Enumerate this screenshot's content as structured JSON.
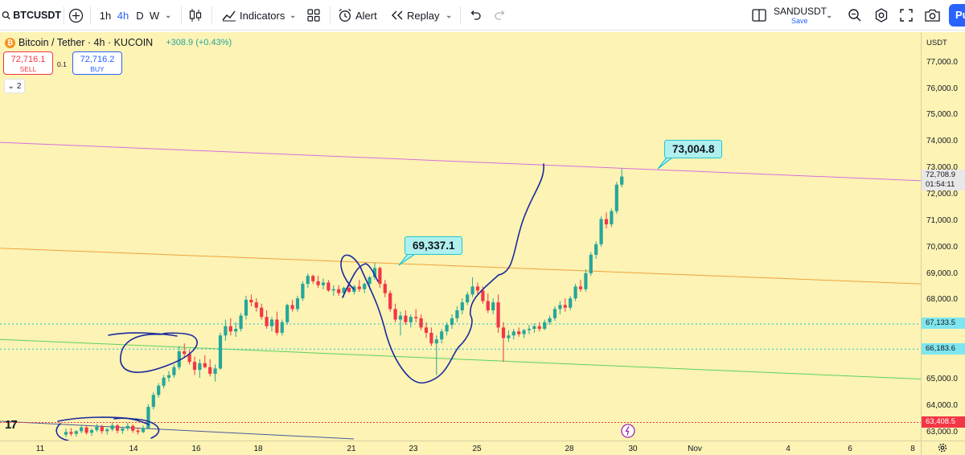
{
  "toolbar": {
    "symbol": "BTCUSDT",
    "timeframes": [
      "1h",
      "4h",
      "D",
      "W"
    ],
    "active_timeframe": "4h",
    "indicators_label": "Indicators",
    "alert_label": "Alert",
    "replay_label": "Replay",
    "layout_name": "SANDUSDT",
    "layout_status": "Save",
    "publish_label": "Pu"
  },
  "legend": {
    "title": "Bitcoin / Tether · 4h · KUCOIN",
    "change": "+308.9 (+0.43%)",
    "coin_glyph": "₿"
  },
  "trade": {
    "sell_price": "72,716.1",
    "sell_label": "SELL",
    "buy_price": "72,716.2",
    "buy_label": "BUY",
    "spread": "0.1",
    "collapse_count": "2"
  },
  "price_scale": {
    "currency": "USDT",
    "ticks": [
      "77,000.0",
      "76,000.0",
      "75,000.0",
      "74,000.0",
      "73,000.0",
      "72,000.0",
      "71,000.0",
      "70,000.0",
      "69,000.0",
      "68,000.0",
      "65,000.0",
      "64,000.0",
      "63,000.0"
    ],
    "current_price": "72,708.9",
    "countdown": "01:54:11",
    "badge_high": "67,133.5",
    "badge_low": "66,183.6",
    "badge_red": "63,408.5"
  },
  "time_axis": {
    "labels": [
      "11",
      "14",
      "16",
      "18",
      "21",
      "23",
      "25",
      "28",
      "30",
      "Nov",
      "4",
      "6",
      "8"
    ]
  },
  "annotations": {
    "callout_high": "73,004.8",
    "callout_mid": "69,337.1",
    "tv_logo": "17"
  },
  "colors": {
    "chart_bg": "#fcf3b4",
    "up": "#26a69a",
    "down": "#f23645",
    "accent": "#2962ff",
    "callout_fill": "#aff0ee",
    "pink_trend": "#d76ee0",
    "orange_trend": "#f0a23a",
    "green_trend": "#5bd15b",
    "drawing_ink": "#1b2a9e"
  },
  "chart_data": {
    "type": "candlestick",
    "symbol": "BTCUSDT",
    "interval": "4h",
    "exchange": "KUCOIN",
    "ylim": [
      62900,
      77600
    ],
    "x_ticks": [
      "11",
      "14",
      "16",
      "18",
      "21",
      "23",
      "25",
      "28",
      "30",
      "Nov",
      "4",
      "6",
      "8"
    ],
    "candles": [
      [
        62950,
        63180,
        62850,
        63050
      ],
      [
        63050,
        63200,
        62900,
        62980
      ],
      [
        62980,
        63120,
        62880,
        63080
      ],
      [
        63080,
        63300,
        63000,
        63220
      ],
      [
        63220,
        63300,
        62950,
        63020
      ],
      [
        63020,
        63180,
        62900,
        63120
      ],
      [
        63120,
        63350,
        63050,
        63250
      ],
      [
        63250,
        63320,
        62980,
        63080
      ],
      [
        63080,
        63200,
        62950,
        63150
      ],
      [
        63150,
        63400,
        63080,
        63300
      ],
      [
        63300,
        63350,
        63000,
        63100
      ],
      [
        63100,
        63250,
        62980,
        63180
      ],
      [
        63180,
        63400,
        63100,
        63280
      ],
      [
        63280,
        63330,
        63020,
        63100
      ],
      [
        63100,
        63200,
        62950,
        63050
      ],
      [
        63050,
        63300,
        63000,
        63200
      ],
      [
        63200,
        64100,
        63150,
        64000
      ],
      [
        64000,
        64550,
        63900,
        64450
      ],
      [
        64450,
        64900,
        64350,
        64800
      ],
      [
        64800,
        65200,
        64700,
        65100
      ],
      [
        65100,
        65350,
        64950,
        65200
      ],
      [
        65200,
        65600,
        65100,
        65500
      ],
      [
        65500,
        66300,
        65400,
        66100
      ],
      [
        66100,
        66400,
        65850,
        66000
      ],
      [
        66000,
        66150,
        65600,
        65700
      ],
      [
        65700,
        65900,
        65200,
        65400
      ],
      [
        65400,
        65800,
        65100,
        65650
      ],
      [
        65650,
        65950,
        65450,
        65500
      ],
      [
        65500,
        65800,
        65150,
        65250
      ],
      [
        65250,
        65600,
        64950,
        65450
      ],
      [
        65450,
        66800,
        65400,
        66700
      ],
      [
        66700,
        67300,
        66500,
        67050
      ],
      [
        67050,
        67350,
        66700,
        66850
      ],
      [
        66850,
        67200,
        66650,
        66950
      ],
      [
        66950,
        67550,
        66850,
        67450
      ],
      [
        67450,
        68200,
        67300,
        68050
      ],
      [
        68050,
        68250,
        67800,
        67950
      ],
      [
        67950,
        68100,
        67600,
        67750
      ],
      [
        67750,
        67900,
        67300,
        67400
      ],
      [
        67400,
        67650,
        66950,
        67050
      ],
      [
        67050,
        67400,
        66850,
        67300
      ],
      [
        67300,
        67600,
        66700,
        66800
      ],
      [
        66800,
        67300,
        66700,
        67200
      ],
      [
        67200,
        67900,
        67100,
        67850
      ],
      [
        67850,
        68050,
        67600,
        67700
      ],
      [
        67700,
        68200,
        67600,
        68100
      ],
      [
        68100,
        68750,
        68000,
        68650
      ],
      [
        68650,
        69050,
        68500,
        68950
      ],
      [
        68950,
        69000,
        68650,
        68750
      ],
      [
        68750,
        68950,
        68500,
        68600
      ],
      [
        68600,
        68850,
        68450,
        68700
      ],
      [
        68700,
        68800,
        68350,
        68400
      ],
      [
        68400,
        68600,
        68200,
        68450
      ],
      [
        68450,
        68600,
        68200,
        68300
      ],
      [
        68300,
        68550,
        68150,
        68500
      ],
      [
        68500,
        68700,
        68300,
        68350
      ],
      [
        68350,
        68600,
        68250,
        68550
      ],
      [
        68550,
        68800,
        68350,
        68450
      ],
      [
        68450,
        68700,
        68300,
        68650
      ],
      [
        68650,
        68950,
        68450,
        68900
      ],
      [
        68900,
        69450,
        68800,
        69250
      ],
      [
        69250,
        69300,
        68500,
        68650
      ],
      [
        68650,
        68800,
        68150,
        68300
      ],
      [
        68300,
        68400,
        67600,
        67700
      ],
      [
        67700,
        67900,
        67200,
        67300
      ],
      [
        67300,
        67600,
        66700,
        67450
      ],
      [
        67450,
        67650,
        67100,
        67200
      ],
      [
        67200,
        67500,
        67000,
        67400
      ],
      [
        67400,
        67700,
        67200,
        67350
      ],
      [
        67350,
        67500,
        66900,
        67000
      ],
      [
        67000,
        67200,
        66600,
        66800
      ],
      [
        66800,
        67000,
        66300,
        66400
      ],
      [
        66400,
        66700,
        65200,
        66550
      ],
      [
        66550,
        66950,
        66400,
        66850
      ],
      [
        66850,
        67200,
        66700,
        67100
      ],
      [
        67100,
        67500,
        66950,
        67350
      ],
      [
        67350,
        67800,
        67200,
        67650
      ],
      [
        67650,
        68100,
        67500,
        67950
      ],
      [
        67950,
        68350,
        67850,
        68250
      ],
      [
        68250,
        68900,
        68150,
        68550
      ],
      [
        68550,
        68700,
        68250,
        68400
      ],
      [
        68400,
        68550,
        67900,
        68000
      ],
      [
        68000,
        68300,
        67550,
        67650
      ],
      [
        67650,
        68100,
        67500,
        67950
      ],
      [
        67950,
        68250,
        66800,
        67000
      ],
      [
        67000,
        67200,
        65700,
        66600
      ],
      [
        66600,
        66900,
        66450,
        66700
      ],
      [
        66700,
        66950,
        66550,
        66850
      ],
      [
        66850,
        67000,
        66650,
        66750
      ],
      [
        66750,
        66950,
        66600,
        66900
      ],
      [
        66900,
        67100,
        66750,
        66950
      ],
      [
        66950,
        67150,
        66800,
        67050
      ],
      [
        67050,
        67200,
        66850,
        66950
      ],
      [
        66950,
        67300,
        66900,
        67200
      ],
      [
        67200,
        67450,
        67100,
        67350
      ],
      [
        67350,
        67800,
        67250,
        67700
      ],
      [
        67700,
        68000,
        67500,
        67850
      ],
      [
        67850,
        68100,
        67600,
        67750
      ],
      [
        67750,
        68200,
        67650,
        68100
      ],
      [
        68100,
        68650,
        68000,
        68550
      ],
      [
        68550,
        68800,
        68350,
        68450
      ],
      [
        68450,
        69200,
        68350,
        69050
      ],
      [
        69050,
        69850,
        68950,
        69750
      ],
      [
        69750,
        70250,
        69600,
        70150
      ],
      [
        70150,
        71200,
        70050,
        71100
      ],
      [
        71100,
        71350,
        70750,
        70900
      ],
      [
        70900,
        71500,
        70800,
        71400
      ],
      [
        71400,
        72500,
        71300,
        72400
      ],
      [
        72400,
        73004.8,
        72300,
        72708.9
      ]
    ],
    "horizontal_lines": [
      67133.5,
      66183.6,
      63408.5
    ],
    "trend_lines": [
      {
        "color": "pink",
        "from": [
          "start",
          74000
        ],
        "to": [
          "end",
          72550
        ]
      },
      {
        "color": "orange",
        "from": [
          "start",
          70000
        ],
        "to": [
          "end",
          68650
        ]
      },
      {
        "color": "green",
        "from": [
          "start",
          66550
        ],
        "to": [
          "end",
          65050
        ]
      }
    ],
    "labels": [
      "73,004.8",
      "69,337.1"
    ]
  }
}
